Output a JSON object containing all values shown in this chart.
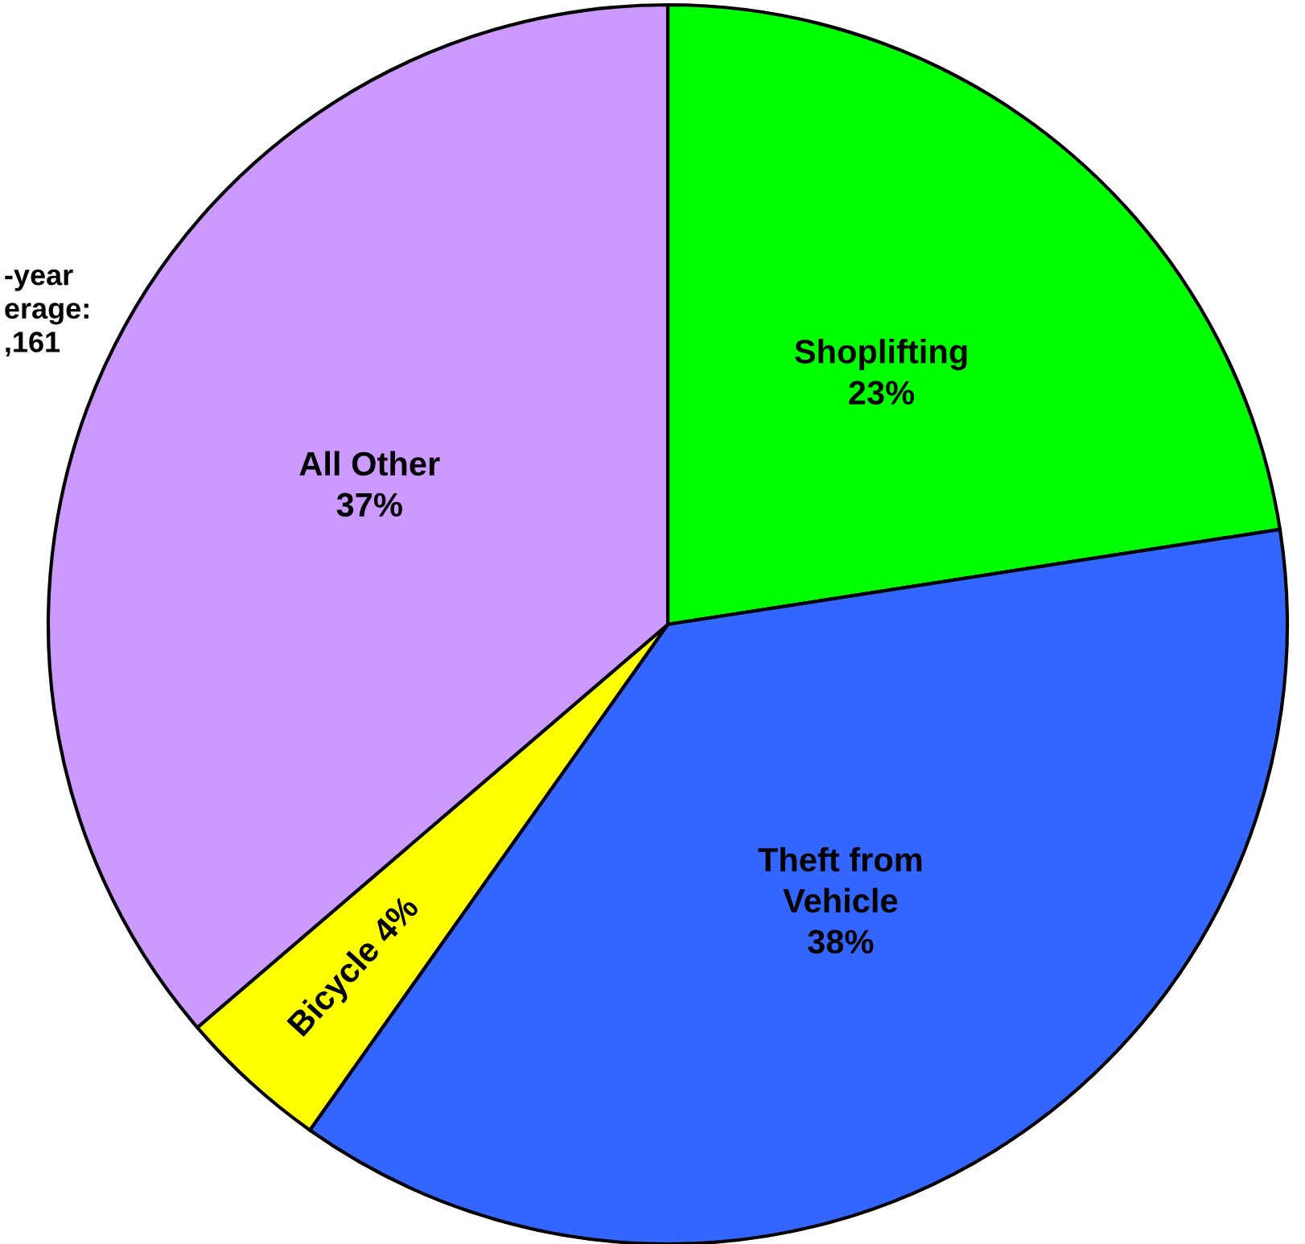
{
  "chart_data": {
    "type": "pie",
    "categories": [
      "Shoplifting",
      "Theft from\nVehicle",
      "Bicycle",
      "All Other"
    ],
    "values": [
      23,
      38,
      4,
      37
    ],
    "colors": [
      "#00ff00",
      "#3366ff",
      "#ffff00",
      "#cc99ff"
    ],
    "value_labels": [
      "23%",
      "38%",
      "4%",
      "37%"
    ],
    "annotations": [
      "-year\nerage:\n,161"
    ]
  }
}
